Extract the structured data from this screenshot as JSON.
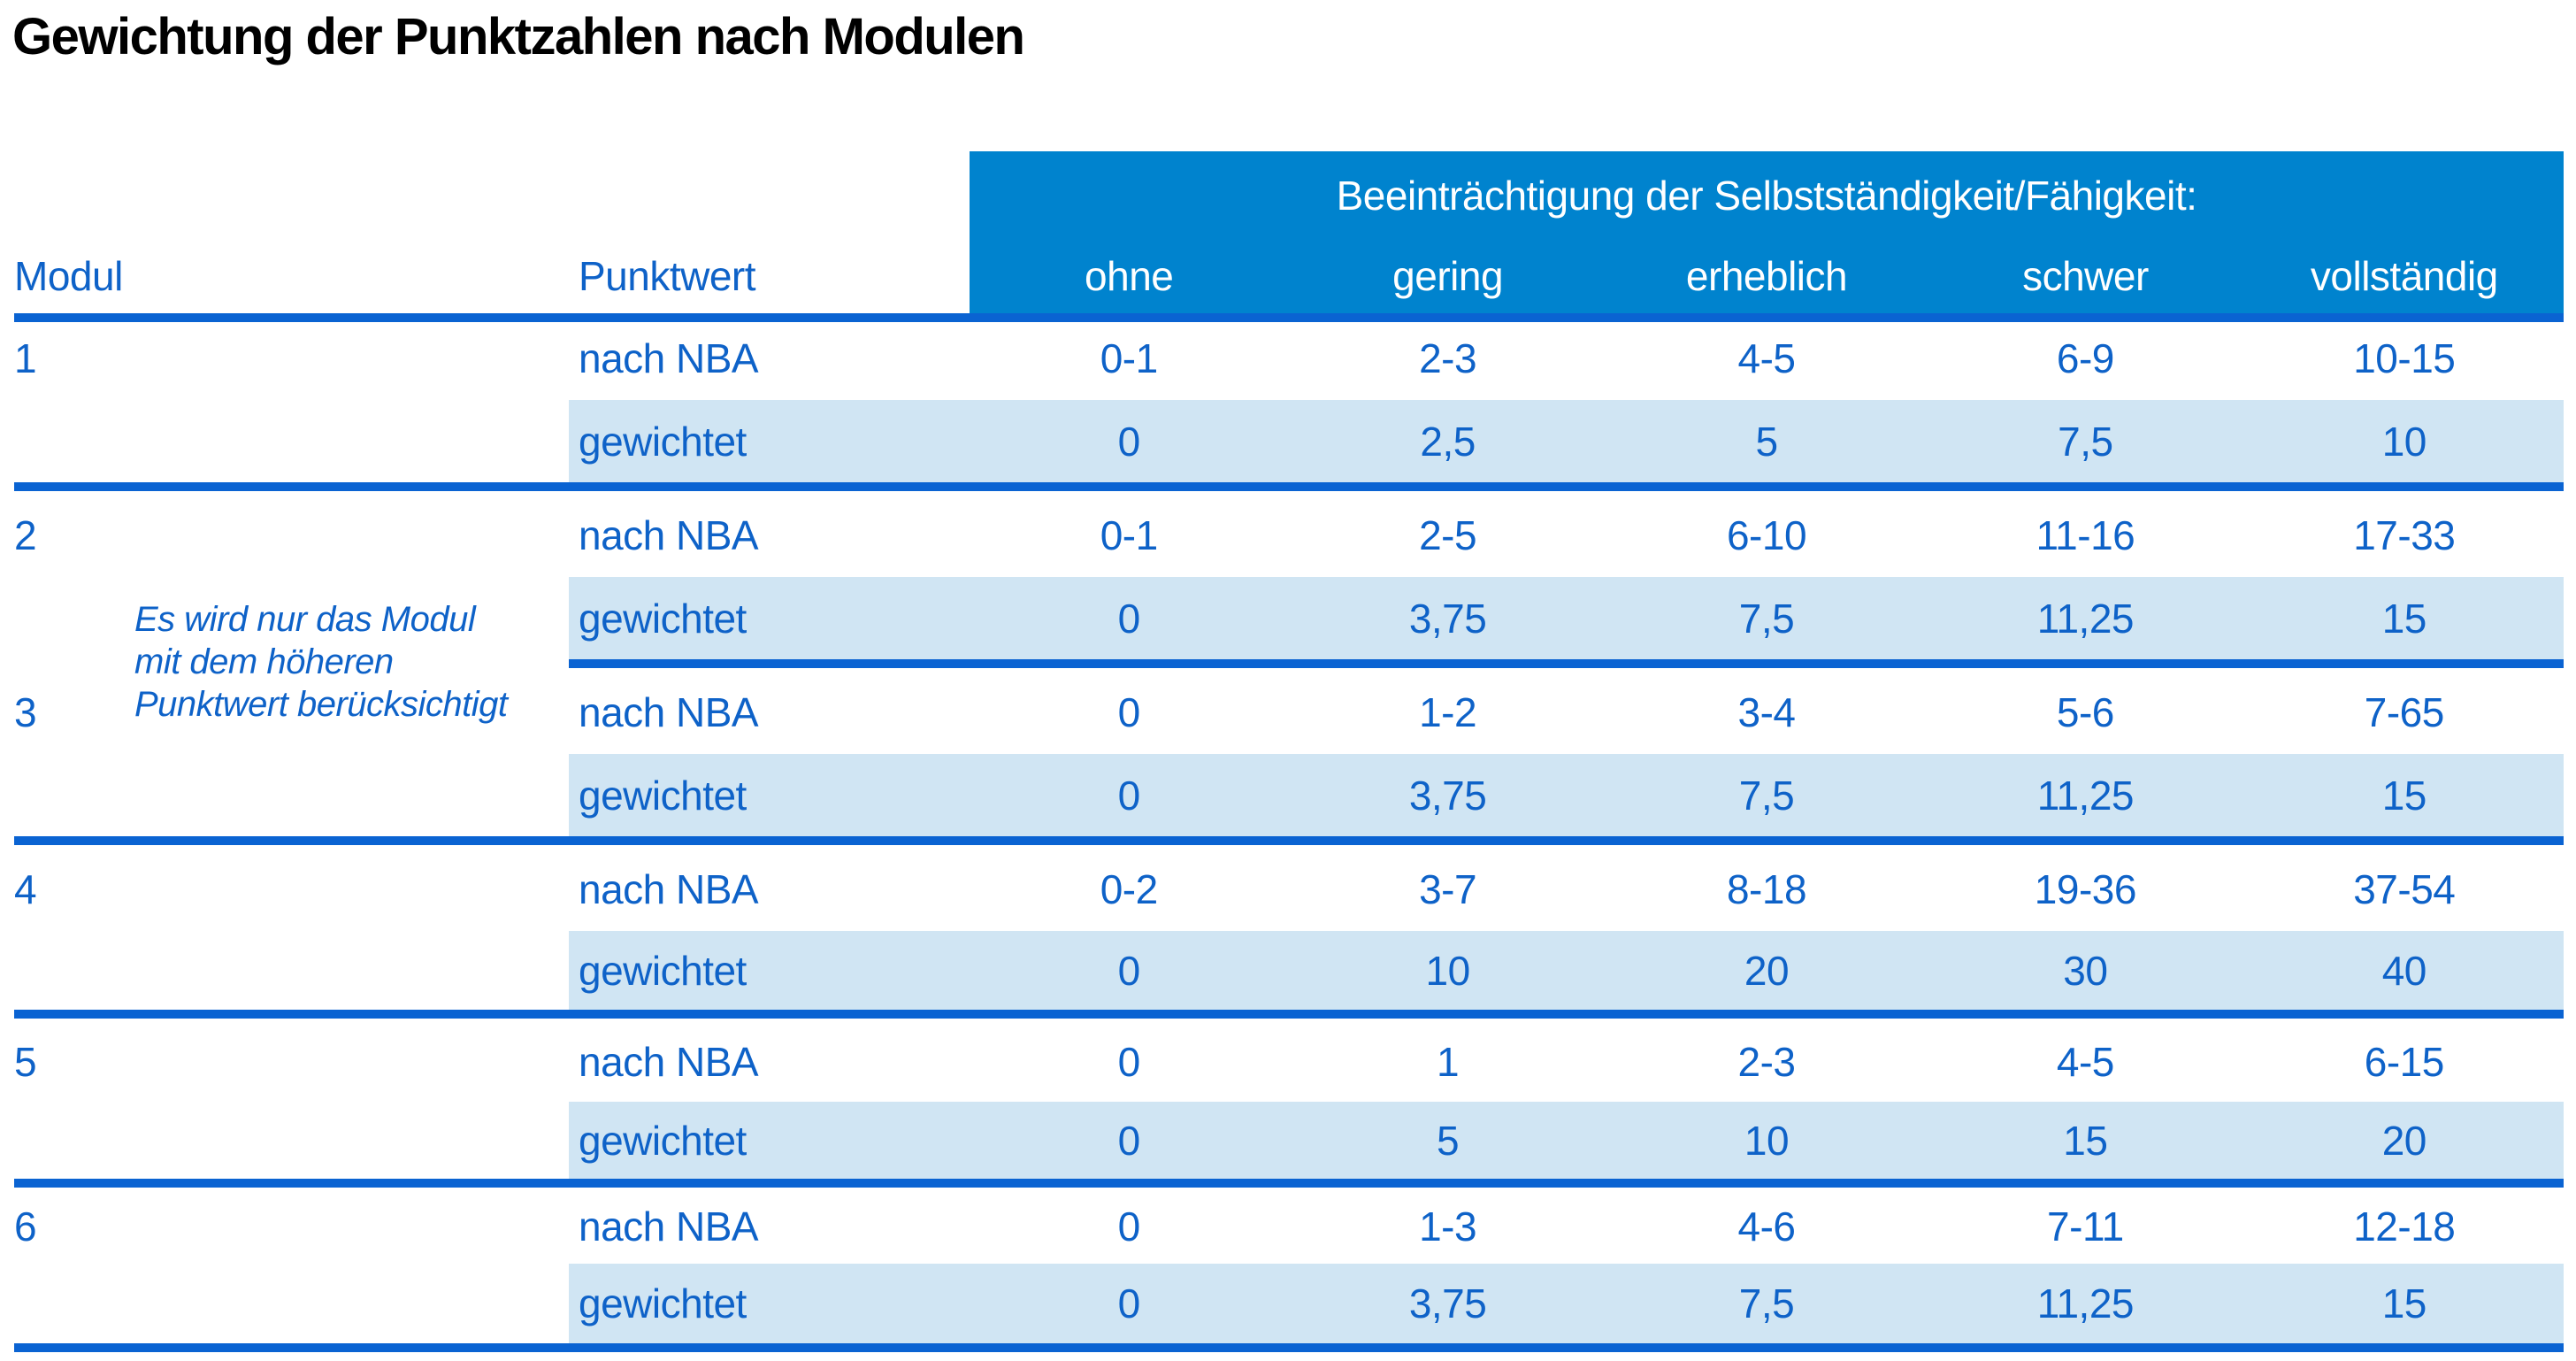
{
  "title": "Gewichtung der Punktzahlen nach Modulen",
  "table": {
    "impairment_header": "Beeinträchtigung der Selbstständigkeit/Fähigkeit:",
    "col_headers": {
      "modul": "Modul",
      "punktwert": "Punktwert"
    },
    "severity_levels": [
      "ohne",
      "gering",
      "erheblich",
      "schwer",
      "vollständig"
    ],
    "row_labels": {
      "nba": "nach NBA",
      "weighted": "gewichtet"
    },
    "note": {
      "lines": [
        "Es wird nur das Modul",
        "mit dem höheren",
        "Punktwert berücksichtigt"
      ]
    },
    "modules": [
      {
        "number": "1",
        "nba": [
          "0-1",
          "2-3",
          "4-5",
          "6-9",
          "10-15"
        ],
        "weighted": [
          "0",
          "2,5",
          "5",
          "7,5",
          "10"
        ]
      },
      {
        "number": "2",
        "nba": [
          "0-1",
          "2-5",
          "6-10",
          "11-16",
          "17-33"
        ],
        "weighted": [
          "0",
          "3,75",
          "7,5",
          "11,25",
          "15"
        ]
      },
      {
        "number": "3",
        "nba": [
          "0",
          "1-2",
          "3-4",
          "5-6",
          "7-65"
        ],
        "weighted": [
          "0",
          "3,75",
          "7,5",
          "11,25",
          "15"
        ]
      },
      {
        "number": "4",
        "nba": [
          "0-2",
          "3-7",
          "8-18",
          "19-36",
          "37-54"
        ],
        "weighted": [
          "0",
          "10",
          "20",
          "30",
          "40"
        ]
      },
      {
        "number": "5",
        "nba": [
          "0",
          "1",
          "2-3",
          "4-5",
          "6-15"
        ],
        "weighted": [
          "0",
          "5",
          "10",
          "15",
          "20"
        ]
      },
      {
        "number": "6",
        "nba": [
          "0",
          "1-3",
          "4-6",
          "7-11",
          "12-18"
        ],
        "weighted": [
          "0",
          "3,75",
          "7,5",
          "11,25",
          "15"
        ]
      }
    ]
  },
  "colors": {
    "header_bg": "#0083CE",
    "row_highlight_bg": "#D0E5F3",
    "rule_blue": "#0A63D2",
    "text_blue": "#0E62C8",
    "header_text": "#FFFFFF",
    "title_text": "#000000"
  }
}
